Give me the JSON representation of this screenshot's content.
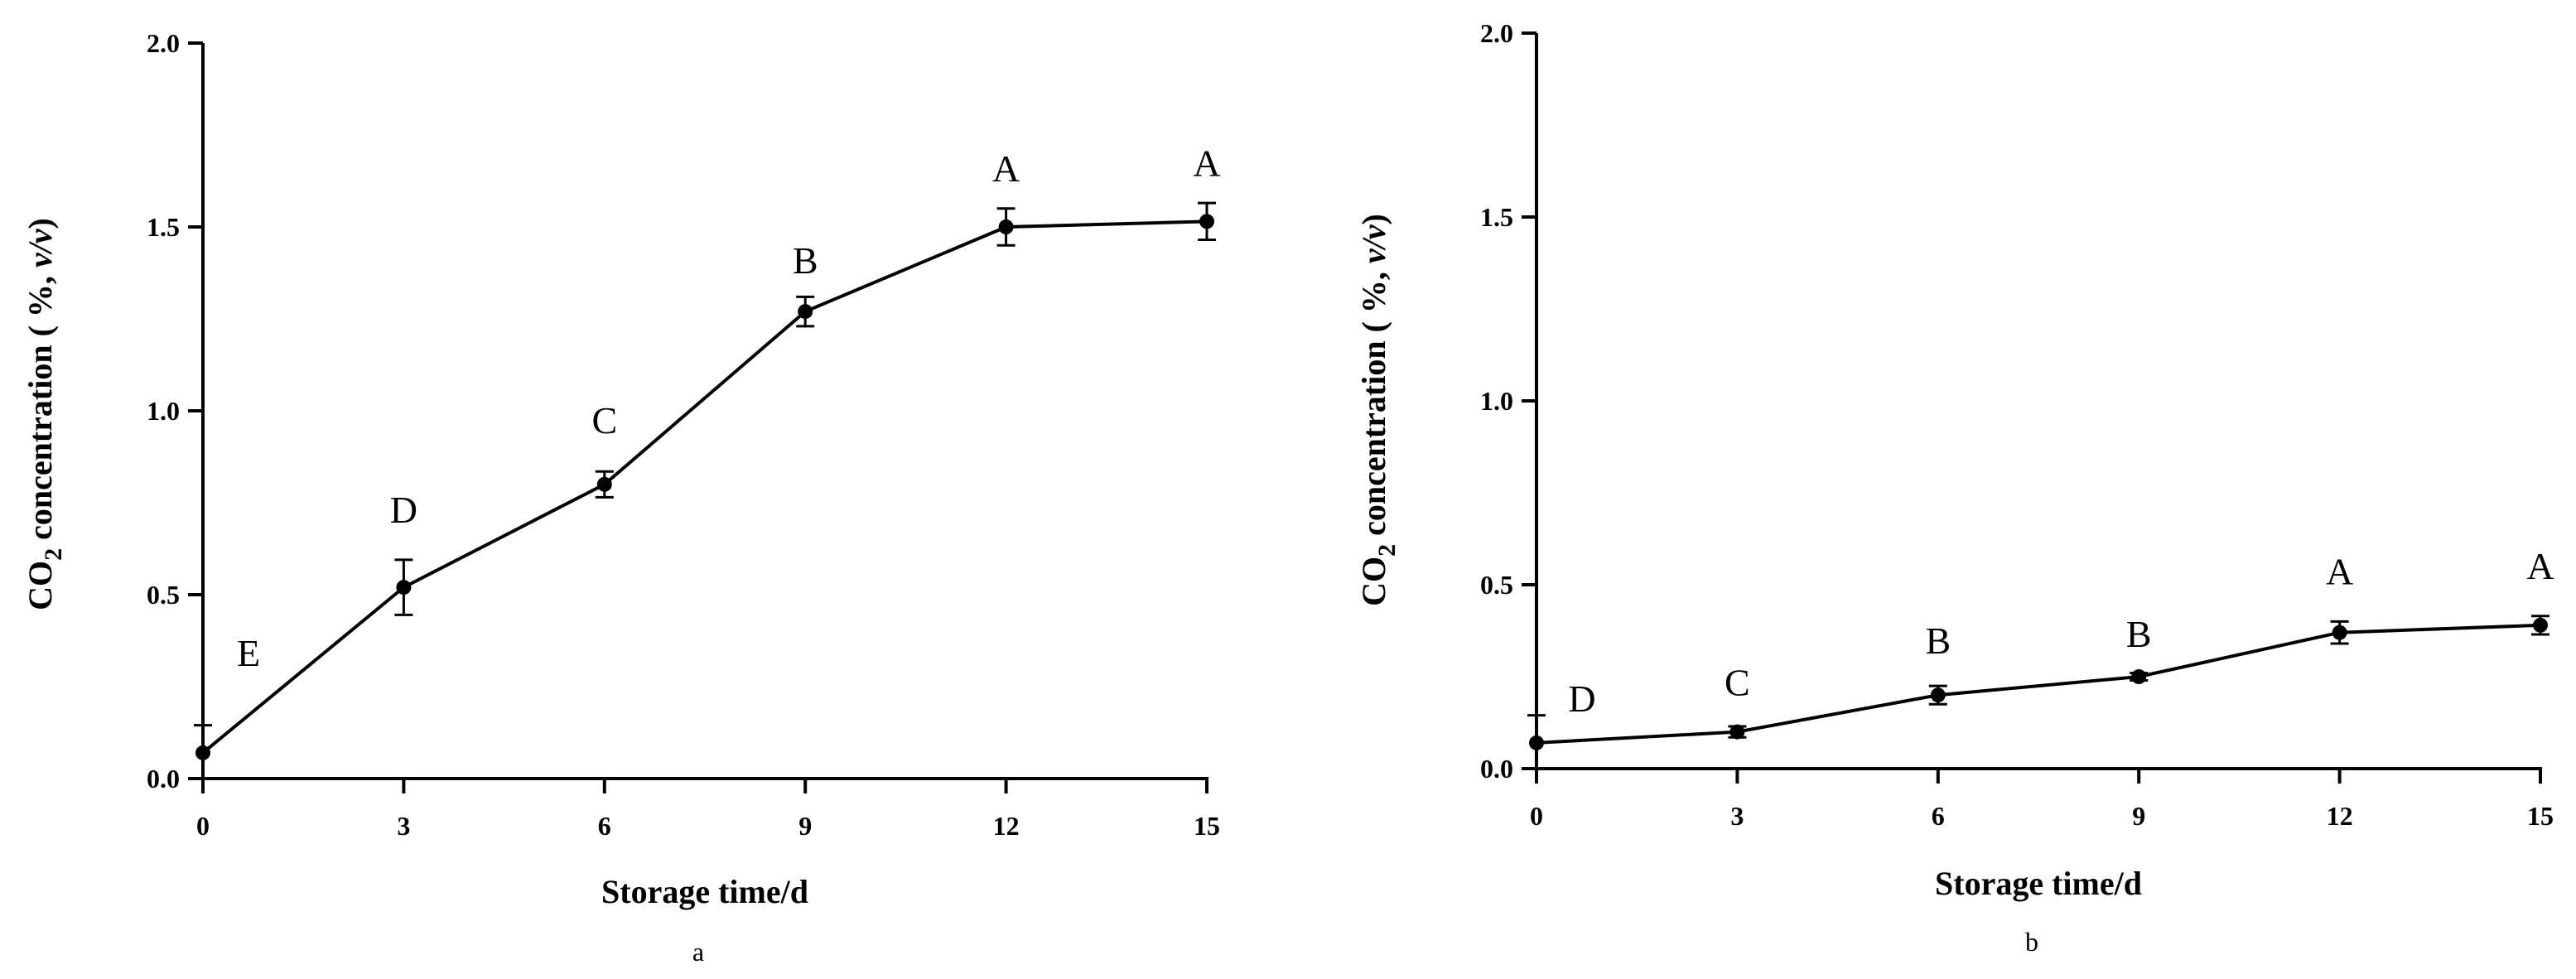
{
  "chart_data": [
    {
      "type": "line",
      "panel_label": "a",
      "xlabel": "Storage time/d",
      "ylabel": {
        "prefix": "CO",
        "subscript": "2",
        "middle": " concentration ( %,  ",
        "italic": "v/v",
        "suffix": ")"
      },
      "x": [
        0,
        3,
        6,
        9,
        12,
        15
      ],
      "y": [
        0.07,
        0.52,
        0.8,
        1.27,
        1.5,
        1.515
      ],
      "error": [
        0.075,
        0.075,
        0.035,
        0.04,
        0.05,
        0.05
      ],
      "significance_letters": [
        "E",
        "D",
        "C",
        "B",
        "A",
        "A"
      ],
      "xticks": [
        "0",
        "3",
        "6",
        "9",
        "12",
        "15"
      ],
      "yticks": [
        "0.0",
        "0.5",
        "1.0",
        "1.5",
        "2.0"
      ],
      "xlim": [
        0,
        15
      ],
      "ylim": [
        0,
        2.0
      ],
      "grid": false,
      "legend": "none"
    },
    {
      "type": "line",
      "panel_label": "b",
      "xlabel": "Storage time/d",
      "ylabel": {
        "prefix": "CO",
        "subscript": "2",
        "middle": " concentration ( %,  ",
        "italic": "v/v",
        "suffix": ")"
      },
      "x": [
        0,
        3,
        6,
        9,
        12,
        15
      ],
      "y": [
        0.07,
        0.1,
        0.2,
        0.25,
        0.37,
        0.39
      ],
      "error": [
        0.075,
        0.015,
        0.025,
        0.01,
        0.03,
        0.025
      ],
      "significance_letters": [
        "D",
        "C",
        "B",
        "B",
        "A",
        "A"
      ],
      "xticks": [
        "0",
        "3",
        "6",
        "9",
        "12",
        "15"
      ],
      "yticks": [
        "0.0",
        "0.5",
        "1.0",
        "1.5",
        "2.0"
      ],
      "xlim": [
        0,
        15
      ],
      "ylim": [
        0,
        2.0
      ],
      "grid": false,
      "legend": "none"
    }
  ]
}
